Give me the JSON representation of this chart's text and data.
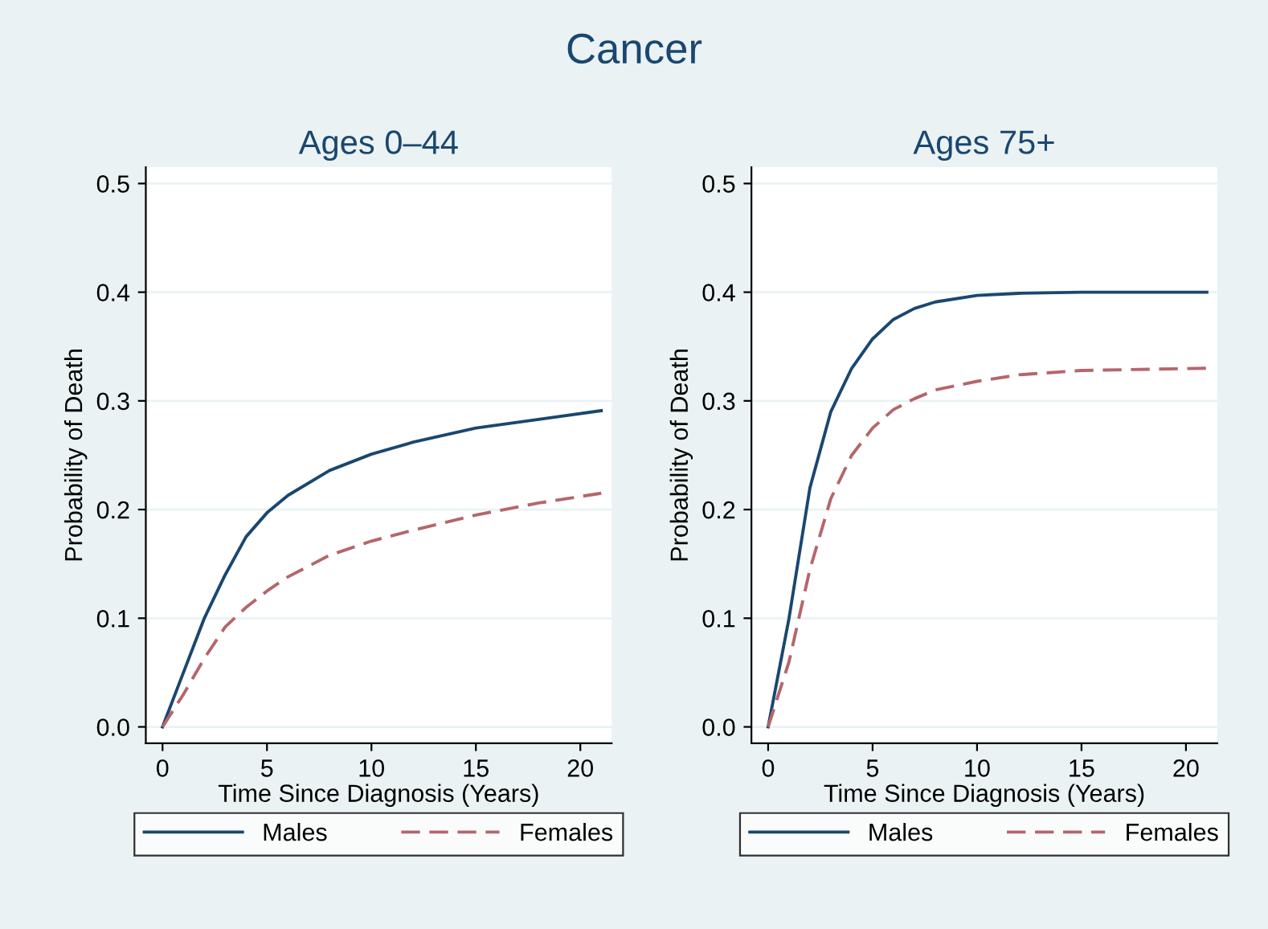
{
  "chart_data": [
    {
      "type": "line",
      "title": "Ages 0–44",
      "annotations": [
        "Cancer"
      ],
      "xlabel": "Time Since Diagnosis (Years)",
      "ylabel": "Probability of Death",
      "xlim": [
        -0.8,
        21.5
      ],
      "ylim": [
        -0.015,
        0.515
      ],
      "xticks": [
        0,
        5,
        10,
        15,
        20
      ],
      "yticks": [
        {
          "value": 0,
          "label": "0.0"
        },
        0.1,
        0.2,
        0.3,
        0.4,
        0.5
      ],
      "grid": "y",
      "legend": "bottom",
      "series": [
        {
          "name": "Males",
          "color": "#1a476f",
          "line_style": "solid",
          "x": [
            0,
            1,
            2,
            3,
            4,
            5,
            6,
            8,
            10,
            12,
            15,
            18,
            21
          ],
          "values": [
            0,
            0.05,
            0.1,
            0.14,
            0.175,
            0.197,
            0.213,
            0.236,
            0.251,
            0.262,
            0.275,
            0.283,
            0.291
          ]
        },
        {
          "name": "Females",
          "color": "#b5666b",
          "line_style": "dashed",
          "x": [
            0,
            1,
            2,
            3,
            4,
            5,
            6,
            8,
            10,
            12,
            15,
            18,
            21
          ],
          "values": [
            0,
            0.03,
            0.063,
            0.092,
            0.11,
            0.125,
            0.138,
            0.158,
            0.171,
            0.181,
            0.195,
            0.206,
            0.215
          ]
        }
      ]
    },
    {
      "type": "line",
      "title": "Ages 75+",
      "xlabel": "Time Since Diagnosis (Years)",
      "ylabel": "Probability of Death",
      "xlim": [
        -0.8,
        21.5
      ],
      "ylim": [
        -0.015,
        0.515
      ],
      "xticks": [
        0,
        5,
        10,
        15,
        20
      ],
      "yticks": [
        {
          "value": 0,
          "label": "0.0"
        },
        0.1,
        0.2,
        0.3,
        0.4,
        0.5
      ],
      "grid": "y",
      "legend": "bottom",
      "series": [
        {
          "name": "Males",
          "color": "#1a476f",
          "line_style": "solid",
          "x": [
            0,
            1,
            2,
            3,
            4,
            5,
            6,
            7,
            8,
            10,
            12,
            15,
            21
          ],
          "values": [
            0,
            0.1,
            0.22,
            0.29,
            0.33,
            0.357,
            0.375,
            0.385,
            0.391,
            0.397,
            0.399,
            0.4,
            0.4
          ]
        },
        {
          "name": "Females",
          "color": "#b5666b",
          "line_style": "dashed",
          "x": [
            0,
            1,
            2,
            3,
            4,
            5,
            6,
            7,
            8,
            10,
            12,
            15,
            21
          ],
          "values": [
            0,
            0.06,
            0.145,
            0.21,
            0.25,
            0.275,
            0.292,
            0.302,
            0.31,
            0.318,
            0.324,
            0.328,
            0.33
          ]
        }
      ]
    }
  ]
}
